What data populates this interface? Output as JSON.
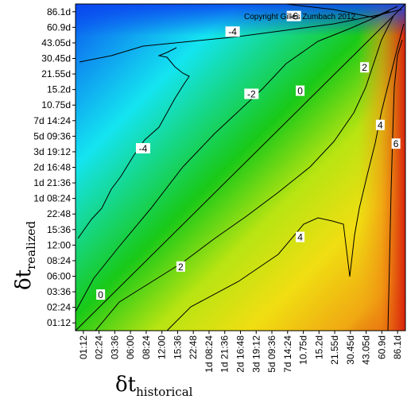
{
  "chart_data": {
    "type": "heatmap",
    "title": "",
    "watermark": "Copyright Gilles Zumbach 2012",
    "xlabel": {
      "symbol": "δt",
      "subscript": "historical"
    },
    "ylabel": {
      "symbol": "δt",
      "subscript": "realized"
    },
    "x_ticks": [
      "01:12",
      "02:24",
      "03:36",
      "06:00",
      "08:24",
      "12:00",
      "15:36",
      "22:48",
      "1d 08:24",
      "1d 21:36",
      "2d 16:48",
      "3d 19:12",
      "5d 09:36",
      "7d 14:24",
      "10.75d",
      "15.2d",
      "21.55d",
      "30.45d",
      "43.05d",
      "60.9d",
      "86.1d"
    ],
    "y_ticks": [
      "01:12",
      "02:24",
      "03:36",
      "06:00",
      "08:24",
      "12:00",
      "15:36",
      "22:48",
      "1d 08:24",
      "1d 21:36",
      "2d 16:48",
      "3d 19:12",
      "5d 09:36",
      "7d 14:24",
      "10.75d",
      "15.2d",
      "21.55d",
      "30.45d",
      "43.05d",
      "60.9d",
      "86.1d"
    ],
    "value_range": [
      -6,
      7
    ],
    "colors": {
      "low": "#0a4cf0",
      "cyan": "#12e6f0",
      "green": "#17c913",
      "yellow": "#f0e10f",
      "orange": "#f09a12",
      "high": "#d8310c"
    },
    "contour_levels": [
      -6,
      -4,
      -2,
      0,
      2,
      4,
      6
    ],
    "contour_labels": [
      {
        "text": "-6",
        "x_index": 13.4,
        "y_index": 19.7
      },
      {
        "text": "-4",
        "x_index": 9.5,
        "y_index": 18.7
      },
      {
        "text": "-2",
        "x_index": 10.7,
        "y_index": 14.7
      },
      {
        "text": "0",
        "x_index": 13.8,
        "y_index": 14.9
      },
      {
        "text": "2",
        "x_index": 17.9,
        "y_index": 16.4
      },
      {
        "text": "4",
        "x_index": 18.9,
        "y_index": 12.7
      },
      {
        "text": "6",
        "x_index": 19.9,
        "y_index": 11.5
      },
      {
        "text": "-4",
        "x_index": 3.8,
        "y_index": 11.2
      },
      {
        "text": "2",
        "x_index": 6.2,
        "y_index": 3.6
      },
      {
        "text": "4",
        "x_index": 13.8,
        "y_index": 5.5
      },
      {
        "text": "0",
        "x_index": 1.1,
        "y_index": 1.8
      }
    ]
  }
}
